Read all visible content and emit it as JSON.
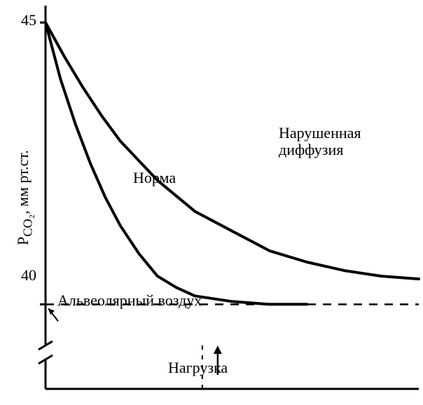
{
  "chart": {
    "type": "line",
    "background_color": "#ffffff",
    "stroke_color": "#000000",
    "axis_stroke_width": 3,
    "series_stroke_width": 4,
    "dash_pattern": "12 10",
    "y_axis": {
      "title": "P_CO2, мм рт.ст.",
      "ticks": [
        40,
        45
      ],
      "range": [
        38.5,
        45.3
      ]
    },
    "x_axis": {
      "range": [
        0,
        1.0
      ]
    },
    "reference_line": {
      "y": 40,
      "label": "Альвеолярный воздух"
    },
    "series": {
      "normal": {
        "label": "Норма",
        "points_x": [
          0.0,
          0.04,
          0.08,
          0.12,
          0.16,
          0.2,
          0.25,
          0.3,
          0.35,
          0.4,
          0.5,
          0.6,
          0.7
        ],
        "points_y": [
          45.0,
          44.0,
          43.2,
          42.5,
          41.9,
          41.4,
          40.9,
          40.5,
          40.3,
          40.15,
          40.05,
          40.0,
          40.0
        ]
      },
      "impaired": {
        "label": "Нарушенная диффузия",
        "points_x": [
          0.0,
          0.05,
          0.1,
          0.15,
          0.2,
          0.3,
          0.4,
          0.5,
          0.6,
          0.7,
          0.8,
          0.9,
          1.0
        ],
        "points_y": [
          45.0,
          44.4,
          43.85,
          43.35,
          42.9,
          42.2,
          41.65,
          41.3,
          40.95,
          40.75,
          40.6,
          40.5,
          40.45
        ]
      }
    },
    "x_annotation": {
      "label": "Нагрузка",
      "x": 0.42
    }
  },
  "labels": {
    "y_tick_40": "40",
    "y_tick_45": "45",
    "y_title_part1": "P",
    "y_title_sub": "CO₂",
    "y_title_part2": ", мм рт.ст."
  }
}
